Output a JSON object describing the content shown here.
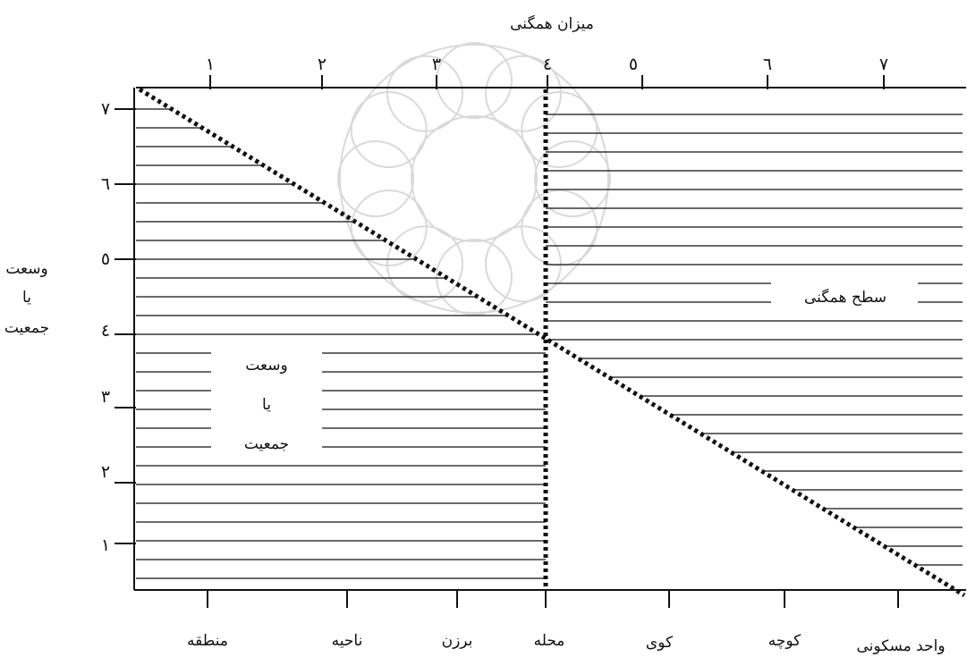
{
  "top_axis": {
    "title": "میزان همگنی",
    "ticks": [
      "١",
      "٢",
      "٣",
      "٤",
      "٥",
      "٦",
      "٧"
    ]
  },
  "left_axis": {
    "title_lines": [
      "وسعت",
      "یا",
      "جمعیت"
    ],
    "ticks": [
      "٧",
      "٦",
      "٥",
      "٤",
      "٣",
      "٢",
      "١"
    ]
  },
  "bottom_axis": {
    "categories": [
      "منطقه",
      "ناحیه",
      "برزن",
      "محله",
      "کوی",
      "کوچه",
      "واحد مسکونی"
    ]
  },
  "regions": {
    "left_label_lines": [
      "وسعت",
      "یا",
      "جمعیت"
    ],
    "right_label": "سطح همگنی"
  },
  "colors": {
    "ink": "#111111",
    "background": "#ffffff",
    "watermark": "#d9d9d9"
  }
}
